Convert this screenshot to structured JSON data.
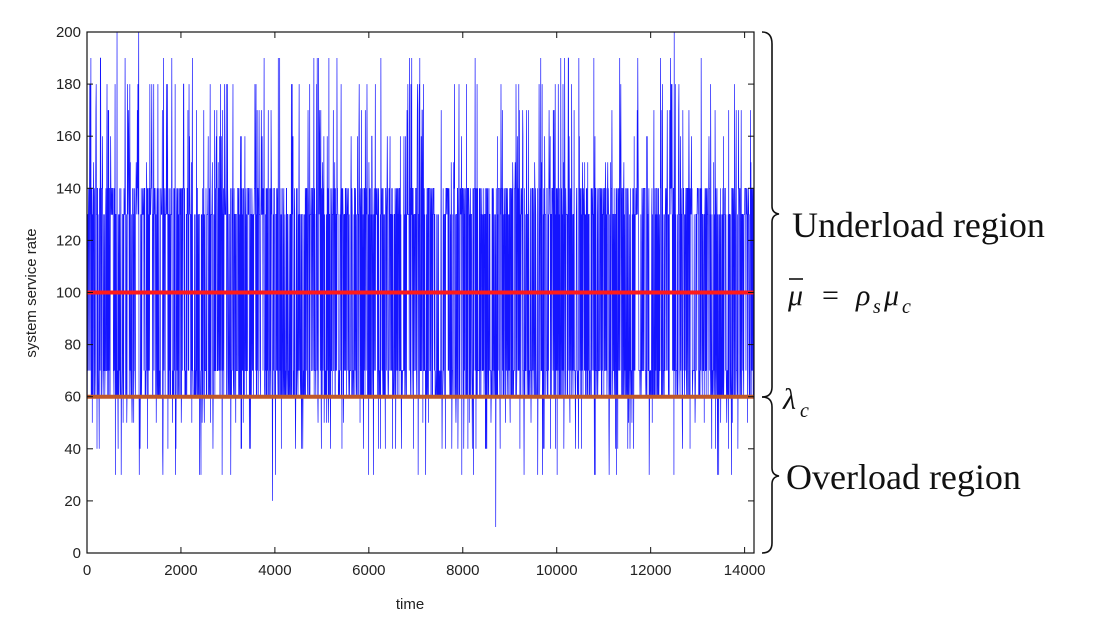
{
  "chart_data": {
    "type": "line",
    "title": "",
    "xlabel": "time",
    "ylabel": "system service rate",
    "xlim": [
      0,
      14200
    ],
    "ylim": [
      0,
      200
    ],
    "x_ticks": [
      0,
      2000,
      4000,
      6000,
      8000,
      10000,
      12000,
      14000
    ],
    "y_ticks": [
      0,
      20,
      40,
      60,
      80,
      100,
      120,
      140,
      160,
      180,
      200
    ],
    "grid": false,
    "series": [
      {
        "name": "",
        "color": "#1414ff",
        "x_range": [
          0,
          14200
        ],
        "num_points": 14200,
        "dense_band": [
          60,
          140
        ],
        "value_levels": [
          10,
          20,
          30,
          40,
          50,
          60,
          70,
          80,
          90,
          100,
          110,
          120,
          130,
          140,
          150,
          160,
          170,
          180,
          190,
          200
        ],
        "extremes": [
          {
            "x": 640,
            "y": 200
          },
          {
            "x": 1100,
            "y": 200
          },
          {
            "x": 3950,
            "y": 20
          },
          {
            "x": 8700,
            "y": 10
          },
          {
            "x": 12500,
            "y": 200
          }
        ]
      }
    ],
    "reference_lines": [
      {
        "name": "mean_service_rate",
        "y": 100,
        "color": "#ff1a1a"
      },
      {
        "name": "arrival_rate",
        "y": 60,
        "color": "#c0582a"
      }
    ],
    "annotations": {
      "underload": {
        "text": "Underload region",
        "y_range": [
          60,
          200
        ]
      },
      "overload": {
        "text": "Overload region",
        "y_range": [
          0,
          60
        ]
      },
      "mu_bar": {
        "mu": "μ",
        "eq": "=",
        "rho": "ρ",
        "s": "s",
        "mu2": "μ",
        "c": "c",
        "y": 100
      },
      "lambda_c": {
        "lambda": "λ",
        "c": "c",
        "y": 60
      }
    }
  }
}
